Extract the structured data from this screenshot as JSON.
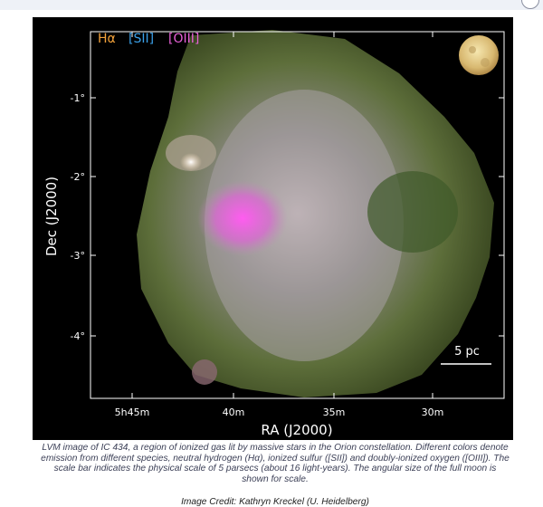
{
  "figure": {
    "legend": {
      "ha": {
        "label": "Hα",
        "color": "#f2a13a"
      },
      "sii": {
        "label": "[SII]",
        "color": "#3aa0e8"
      },
      "oiii": {
        "label": "[OIII]",
        "color": "#e860d8"
      }
    },
    "x_axis": {
      "label": "RA (J2000)",
      "ticks": [
        "5h45m",
        "40m",
        "35m",
        "30m"
      ]
    },
    "y_axis": {
      "label": "Dec (J2000)",
      "ticks": [
        "-1°",
        "-2°",
        "-3°",
        "-4°"
      ]
    },
    "scale_bar": {
      "label": "5 pc"
    },
    "moon_icon": "full-moon-icon"
  },
  "caption": {
    "text": "LVM image of IC 434, a region of ionized gas lit by massive stars in the Orion constellation. Different colors denote emission from different species, neutral hydrogen (Hα), ionized sulfur ([SII]) and doubly-ionized oxygen ([OIII]). The scale bar indicates the physical scale of 5 parsecs (about 16 light-years). The angular size of the full moon is shown for scale."
  },
  "credit": {
    "text": "Image Credit: Kathryn Kreckel (U. Heidelberg)"
  }
}
